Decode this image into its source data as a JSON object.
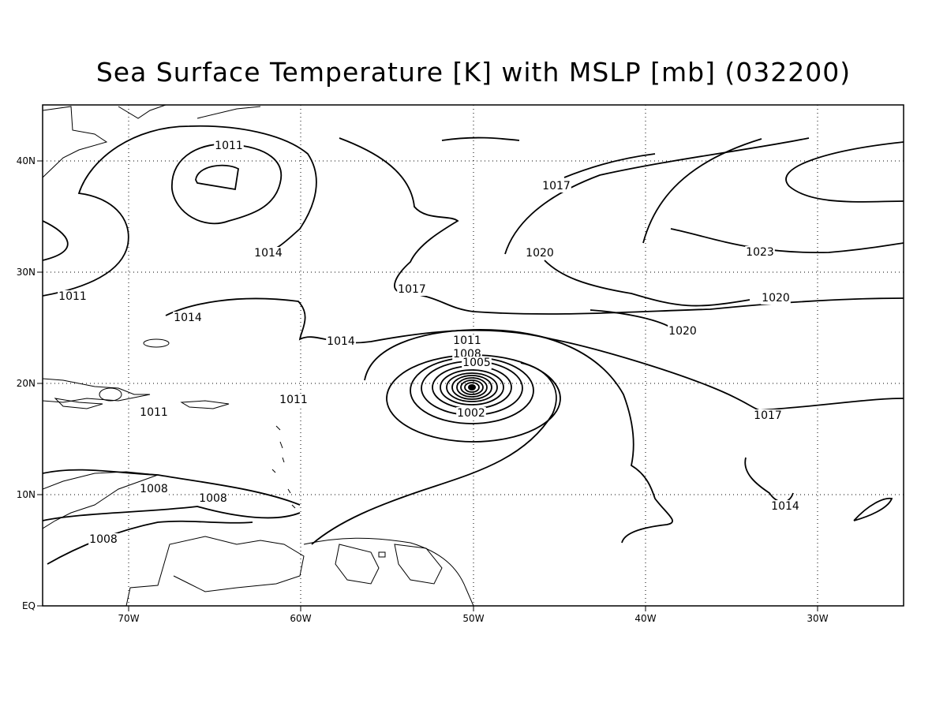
{
  "title": "Sea Surface Temperature [K] with MSLP [mb] (032200)",
  "x_axis": {
    "ticks": [
      "70W",
      "60W",
      "50W",
      "40W",
      "30W"
    ]
  },
  "y_axis": {
    "ticks": [
      "EQ",
      "10N",
      "20N",
      "30N",
      "40N"
    ]
  },
  "contour_labels": [
    "1011",
    "1014",
    "1011",
    "1014",
    "1014",
    "1017",
    "1020",
    "1017",
    "1023",
    "1020",
    "1020",
    "1017",
    "1014",
    "1011",
    "1008",
    "1005",
    "1002",
    "1011",
    "1011",
    "1008",
    "1008",
    "1008"
  ]
}
